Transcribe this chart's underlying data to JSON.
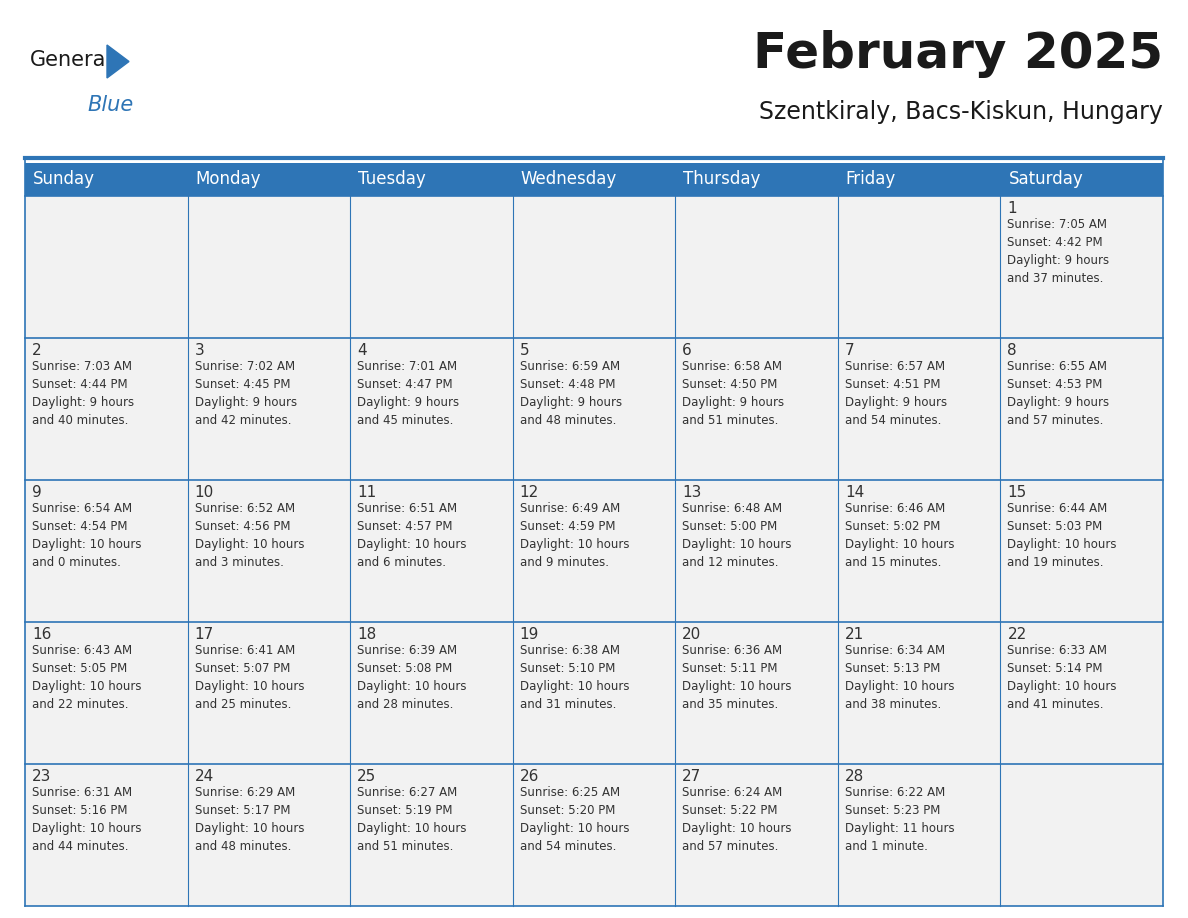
{
  "title": "February 2025",
  "subtitle": "Szentkiraly, Bacs-Kiskun, Hungary",
  "header_bg": "#2E75B6",
  "header_text": "#FFFFFF",
  "cell_bg": "#F2F2F2",
  "border_color": "#2E75B6",
  "text_color": "#333333",
  "day_headers": [
    "Sunday",
    "Monday",
    "Tuesday",
    "Wednesday",
    "Thursday",
    "Friday",
    "Saturday"
  ],
  "weeks": [
    [
      {
        "day": "",
        "info": ""
      },
      {
        "day": "",
        "info": ""
      },
      {
        "day": "",
        "info": ""
      },
      {
        "day": "",
        "info": ""
      },
      {
        "day": "",
        "info": ""
      },
      {
        "day": "",
        "info": ""
      },
      {
        "day": "1",
        "info": "Sunrise: 7:05 AM\nSunset: 4:42 PM\nDaylight: 9 hours\nand 37 minutes."
      }
    ],
    [
      {
        "day": "2",
        "info": "Sunrise: 7:03 AM\nSunset: 4:44 PM\nDaylight: 9 hours\nand 40 minutes."
      },
      {
        "day": "3",
        "info": "Sunrise: 7:02 AM\nSunset: 4:45 PM\nDaylight: 9 hours\nand 42 minutes."
      },
      {
        "day": "4",
        "info": "Sunrise: 7:01 AM\nSunset: 4:47 PM\nDaylight: 9 hours\nand 45 minutes."
      },
      {
        "day": "5",
        "info": "Sunrise: 6:59 AM\nSunset: 4:48 PM\nDaylight: 9 hours\nand 48 minutes."
      },
      {
        "day": "6",
        "info": "Sunrise: 6:58 AM\nSunset: 4:50 PM\nDaylight: 9 hours\nand 51 minutes."
      },
      {
        "day": "7",
        "info": "Sunrise: 6:57 AM\nSunset: 4:51 PM\nDaylight: 9 hours\nand 54 minutes."
      },
      {
        "day": "8",
        "info": "Sunrise: 6:55 AM\nSunset: 4:53 PM\nDaylight: 9 hours\nand 57 minutes."
      }
    ],
    [
      {
        "day": "9",
        "info": "Sunrise: 6:54 AM\nSunset: 4:54 PM\nDaylight: 10 hours\nand 0 minutes."
      },
      {
        "day": "10",
        "info": "Sunrise: 6:52 AM\nSunset: 4:56 PM\nDaylight: 10 hours\nand 3 minutes."
      },
      {
        "day": "11",
        "info": "Sunrise: 6:51 AM\nSunset: 4:57 PM\nDaylight: 10 hours\nand 6 minutes."
      },
      {
        "day": "12",
        "info": "Sunrise: 6:49 AM\nSunset: 4:59 PM\nDaylight: 10 hours\nand 9 minutes."
      },
      {
        "day": "13",
        "info": "Sunrise: 6:48 AM\nSunset: 5:00 PM\nDaylight: 10 hours\nand 12 minutes."
      },
      {
        "day": "14",
        "info": "Sunrise: 6:46 AM\nSunset: 5:02 PM\nDaylight: 10 hours\nand 15 minutes."
      },
      {
        "day": "15",
        "info": "Sunrise: 6:44 AM\nSunset: 5:03 PM\nDaylight: 10 hours\nand 19 minutes."
      }
    ],
    [
      {
        "day": "16",
        "info": "Sunrise: 6:43 AM\nSunset: 5:05 PM\nDaylight: 10 hours\nand 22 minutes."
      },
      {
        "day": "17",
        "info": "Sunrise: 6:41 AM\nSunset: 5:07 PM\nDaylight: 10 hours\nand 25 minutes."
      },
      {
        "day": "18",
        "info": "Sunrise: 6:39 AM\nSunset: 5:08 PM\nDaylight: 10 hours\nand 28 minutes."
      },
      {
        "day": "19",
        "info": "Sunrise: 6:38 AM\nSunset: 5:10 PM\nDaylight: 10 hours\nand 31 minutes."
      },
      {
        "day": "20",
        "info": "Sunrise: 6:36 AM\nSunset: 5:11 PM\nDaylight: 10 hours\nand 35 minutes."
      },
      {
        "day": "21",
        "info": "Sunrise: 6:34 AM\nSunset: 5:13 PM\nDaylight: 10 hours\nand 38 minutes."
      },
      {
        "day": "22",
        "info": "Sunrise: 6:33 AM\nSunset: 5:14 PM\nDaylight: 10 hours\nand 41 minutes."
      }
    ],
    [
      {
        "day": "23",
        "info": "Sunrise: 6:31 AM\nSunset: 5:16 PM\nDaylight: 10 hours\nand 44 minutes."
      },
      {
        "day": "24",
        "info": "Sunrise: 6:29 AM\nSunset: 5:17 PM\nDaylight: 10 hours\nand 48 minutes."
      },
      {
        "day": "25",
        "info": "Sunrise: 6:27 AM\nSunset: 5:19 PM\nDaylight: 10 hours\nand 51 minutes."
      },
      {
        "day": "26",
        "info": "Sunrise: 6:25 AM\nSunset: 5:20 PM\nDaylight: 10 hours\nand 54 minutes."
      },
      {
        "day": "27",
        "info": "Sunrise: 6:24 AM\nSunset: 5:22 PM\nDaylight: 10 hours\nand 57 minutes."
      },
      {
        "day": "28",
        "info": "Sunrise: 6:22 AM\nSunset: 5:23 PM\nDaylight: 11 hours\nand 1 minute."
      },
      {
        "day": "",
        "info": ""
      }
    ]
  ],
  "logo_color_general": "#1a1a1a",
  "logo_color_blue": "#2E75B6",
  "title_fontsize": 36,
  "subtitle_fontsize": 17,
  "header_fontsize": 12,
  "day_fontsize": 11,
  "info_fontsize": 8.5
}
